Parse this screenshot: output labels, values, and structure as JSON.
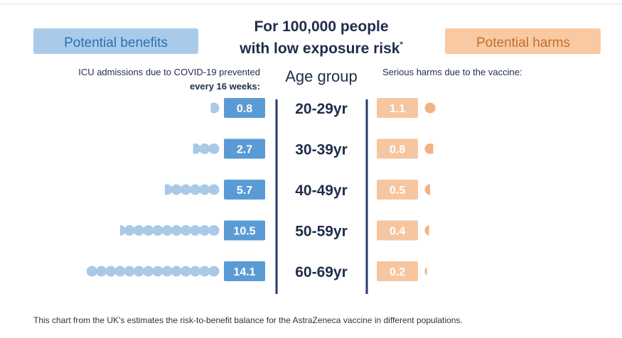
{
  "chart_data": {
    "type": "bar",
    "title_line1": "For 100,000 people",
    "title_line2": "with low exposure risk",
    "title_mark": "*",
    "left_panel": {
      "header": "Potential benefits",
      "subtitle_line1": "ICU admissions due to COVID-19 prevented",
      "subtitle_line2": "every 16 weeks:"
    },
    "right_panel": {
      "header": "Potential harms",
      "subtitle": "Serious harms due to the vaccine:"
    },
    "center_header": "Age group",
    "categories": [
      "20-29yr",
      "30-39yr",
      "40-49yr",
      "50-59yr",
      "60-69yr"
    ],
    "series": [
      {
        "name": "ICU admissions due to COVID-19 prevented every 16 weeks",
        "labels": [
          "0.8",
          "2.7",
          "5.7",
          "10.5",
          "14.1"
        ],
        "values": [
          0.8,
          2.7,
          5.7,
          10.5,
          14.1
        ]
      },
      {
        "name": "Serious harms due to the vaccine",
        "labels": [
          "1.1",
          "0.8",
          "0.5",
          "0.4",
          "0.2"
        ],
        "values": [
          1.1,
          0.8,
          0.5,
          0.4,
          0.2
        ]
      }
    ],
    "colors": {
      "benefit_header": "#a9cbe9",
      "benefit_box": "#5b9bd5",
      "benefit_dot": "#a9c9e6",
      "harm_header": "#f8c9a2",
      "harm_box": "#f6c6a0",
      "harm_dot": "#f4b183",
      "text_dark": "#1f2d4a",
      "benefit_text": "#2e6fb4",
      "harm_text": "#c46f2b",
      "divider": "#2b3a67"
    }
  },
  "caption": "This chart from the UK's estimates the risk-to-benefit balance for the AstraZeneca vaccine in different populations."
}
